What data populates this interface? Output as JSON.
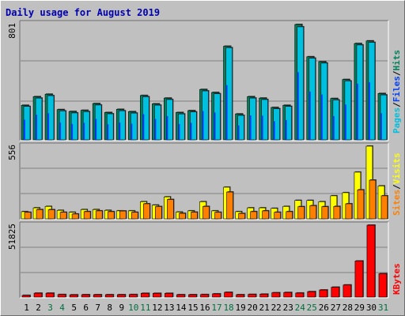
{
  "title": "Daily usage for August 2019",
  "colors": {
    "hits": "#00805c",
    "files": "#0040ff",
    "pages": "#00c0e0",
    "visits": "#ff8000",
    "sites": "#ffff00",
    "kbytes": "#ff0000",
    "weekend_day": "#007040",
    "weekday_day": "#000000",
    "grid": "#808080",
    "panel_bg": "#c0c0c0"
  },
  "chart_data": [
    {
      "type": "bar",
      "panel": "hits-files-pages",
      "ymax_label": "801",
      "ymax": 801,
      "legend": {
        "pages": "Pages",
        "files": "Files",
        "hits": "Hits",
        "sep": "/"
      },
      "categories": [
        "1",
        "2",
        "3",
        "4",
        "5",
        "6",
        "7",
        "8",
        "9",
        "10",
        "11",
        "12",
        "13",
        "14",
        "15",
        "16",
        "17",
        "18",
        "19",
        "20",
        "21",
        "22",
        "23",
        "24",
        "25",
        "26",
        "27",
        "28",
        "29",
        "30",
        "31"
      ],
      "series": [
        {
          "name": "Hits",
          "values": [
            240,
            300,
            317,
            210,
            197,
            205,
            252,
            190,
            212,
            196,
            308,
            250,
            290,
            190,
            203,
            350,
            329,
            650,
            180,
            300,
            290,
            225,
            240,
            801,
            577,
            543,
            287,
            419,
            669,
            687,
            322
          ]
        },
        {
          "name": "Files",
          "values": [
            140,
            175,
            185,
            120,
            110,
            118,
            145,
            108,
            120,
            112,
            178,
            145,
            165,
            110,
            118,
            200,
            190,
            380,
            100,
            170,
            168,
            130,
            138,
            470,
            335,
            315,
            165,
            245,
            390,
            400,
            185
          ]
        },
        {
          "name": "Pages",
          "values": [
            232,
            290,
            307,
            201,
            187,
            196,
            242,
            181,
            202,
            186,
            299,
            241,
            280,
            180,
            194,
            340,
            320,
            640,
            170,
            290,
            280,
            216,
            232,
            785,
            567,
            533,
            277,
            409,
            659,
            677,
            312
          ]
        }
      ]
    },
    {
      "type": "bar",
      "panel": "sites-visits",
      "ymax_label": "556",
      "ymax": 556,
      "legend": {
        "sites": "Sites",
        "visits": "Visits",
        "sep": "/"
      },
      "categories": [
        "1",
        "2",
        "3",
        "4",
        "5",
        "6",
        "7",
        "8",
        "9",
        "10",
        "11",
        "12",
        "13",
        "14",
        "15",
        "16",
        "17",
        "18",
        "19",
        "20",
        "21",
        "22",
        "23",
        "24",
        "25",
        "26",
        "27",
        "28",
        "29",
        "30",
        "31"
      ],
      "series": [
        {
          "name": "Sites",
          "values": [
            55,
            84,
            95,
            65,
            50,
            71,
            71,
            65,
            61,
            61,
            131,
            105,
            168,
            52,
            61,
            131,
            61,
            242,
            55,
            84,
            84,
            80,
            95,
            141,
            141,
            131,
            176,
            200,
            357,
            556,
            252
          ]
        },
        {
          "name": "Visits",
          "values": [
            50,
            71,
            70,
            50,
            37,
            55,
            61,
            55,
            60,
            50,
            115,
            94,
            148,
            42,
            51,
            95,
            50,
            205,
            41,
            55,
            61,
            50,
            55,
            93,
            101,
            93,
            95,
            115,
            222,
            296,
            176
          ]
        }
      ]
    },
    {
      "type": "bar",
      "panel": "kbytes",
      "ymax_label": "51825",
      "ymax": 51825,
      "legend": {
        "kbytes": "KBytes"
      },
      "categories": [
        "1",
        "2",
        "3",
        "4",
        "5",
        "6",
        "7",
        "8",
        "9",
        "10",
        "11",
        "12",
        "13",
        "14",
        "15",
        "16",
        "17",
        "18",
        "19",
        "20",
        "21",
        "22",
        "23",
        "24",
        "25",
        "26",
        "27",
        "28",
        "29",
        "30",
        "31"
      ],
      "series": [
        {
          "name": "KBytes",
          "values": [
            1200,
            2800,
            2800,
            1800,
            1600,
            1700,
            1700,
            1700,
            1700,
            1800,
            2700,
            2700,
            2700,
            1700,
            1700,
            1800,
            2300,
            3400,
            1700,
            1900,
            2100,
            3100,
            3300,
            2900,
            3900,
            5100,
            7100,
            8700,
            26000,
            51825,
            16800
          ]
        }
      ]
    }
  ],
  "weekend_days": [
    "3",
    "4",
    "10",
    "11",
    "17",
    "18",
    "24",
    "25",
    "31"
  ]
}
